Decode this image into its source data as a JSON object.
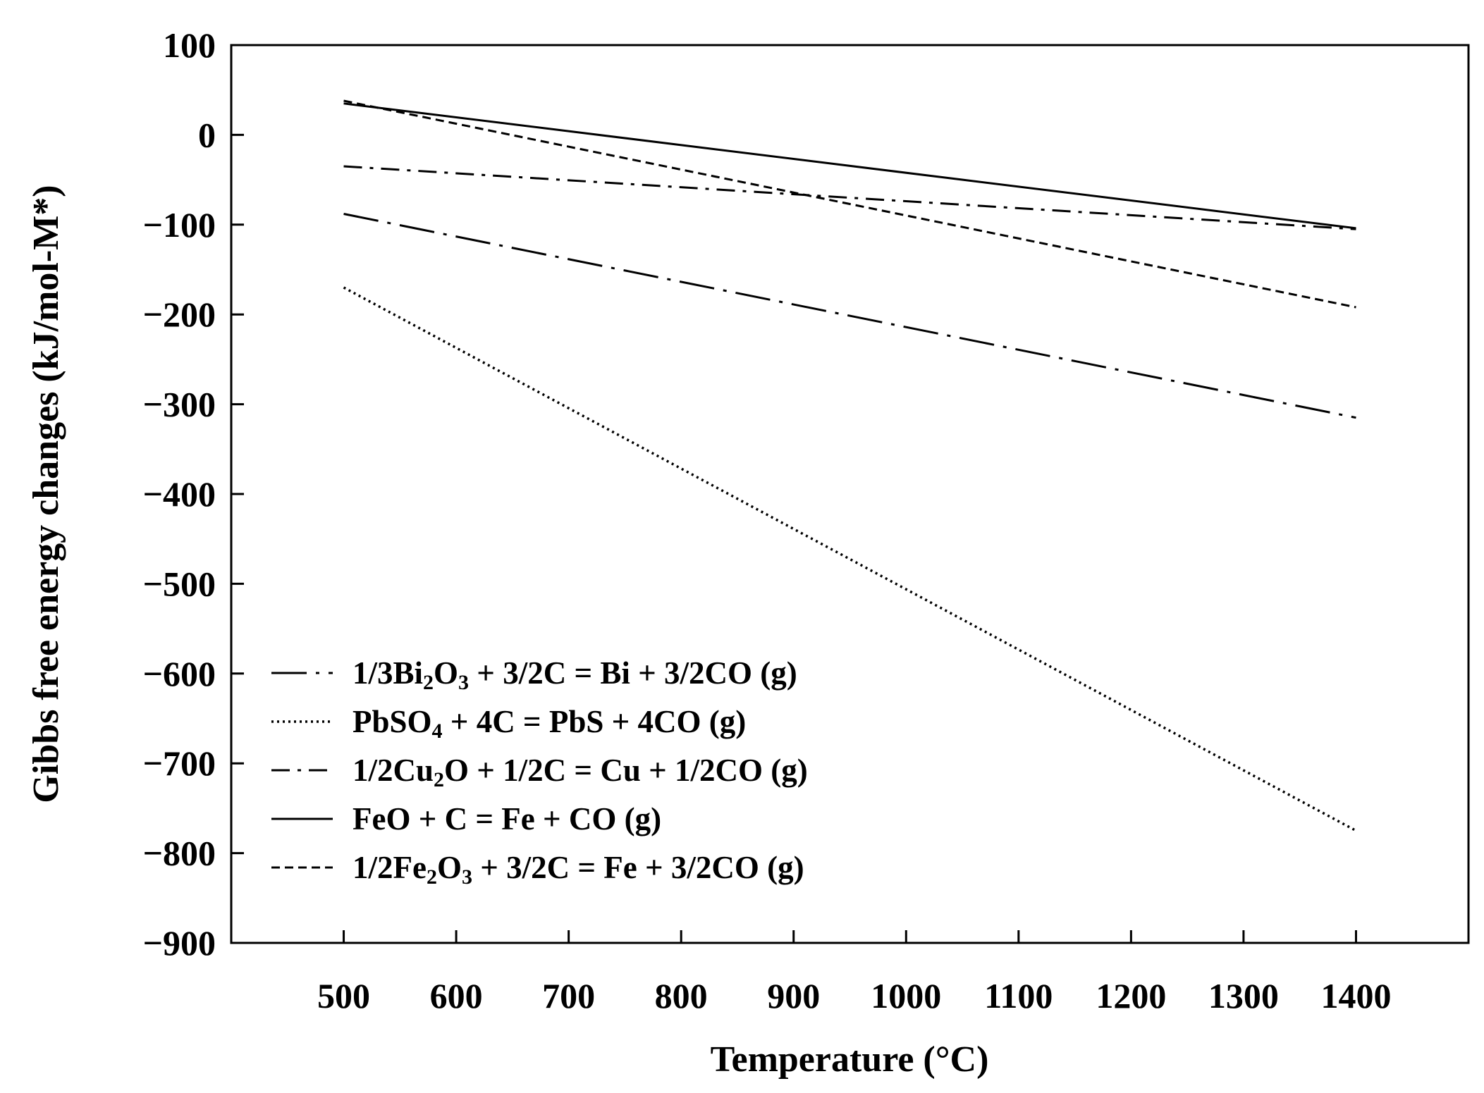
{
  "chart_data": {
    "type": "line",
    "xlabel": "Temperature (°C)",
    "ylabel": "Gibbs free energy changes (kJ/mol-M*)",
    "xlim": [
      400,
      1500
    ],
    "ylim": [
      -900,
      100
    ],
    "x_ticks": [
      500,
      600,
      700,
      800,
      900,
      1000,
      1100,
      1200,
      1300,
      1400
    ],
    "y_ticks": [
      100,
      0,
      -100,
      -200,
      -300,
      -400,
      -500,
      -600,
      -700,
      -800,
      -900
    ],
    "x_tick_labels": [
      "500",
      "600",
      "700",
      "800",
      "900",
      "1000",
      "1100",
      "1200",
      "1300",
      "1400"
    ],
    "y_tick_labels": [
      "100",
      "0",
      "−100",
      "−200",
      "−300",
      "−400",
      "−500",
      "−600",
      "−700",
      "−800",
      "−900"
    ],
    "grid": false,
    "legend_position": "bottom-left",
    "series": [
      {
        "name": "1/3Bi2O3 + 3/2C = Bi + 3/2CO (g)",
        "legend": [
          {
            "t": "1/3Bi"
          },
          {
            "t": "2",
            "sub": true
          },
          {
            "t": "O"
          },
          {
            "t": "3",
            "sub": true
          },
          {
            "t": " + 3/2C = Bi + 3/2CO (g)"
          }
        ],
        "style": "long-dash-dot",
        "x": [
          500,
          1400
        ],
        "y": [
          -88,
          -315
        ]
      },
      {
        "name": "PbSO4 + 4C = PbS + 4CO (g)",
        "legend": [
          {
            "t": "PbSO"
          },
          {
            "t": "4",
            "sub": true
          },
          {
            "t": " + 4C = PbS + 4CO (g)"
          }
        ],
        "style": "dotted",
        "x": [
          500,
          1400
        ],
        "y": [
          -170,
          -775
        ]
      },
      {
        "name": "1/2Cu2O + 1/2C = Cu + 1/2CO (g)",
        "legend": [
          {
            "t": "1/2Cu"
          },
          {
            "t": "2",
            "sub": true
          },
          {
            "t": "O + 1/2C = Cu + 1/2CO (g)"
          }
        ],
        "style": "dash-dot",
        "x": [
          500,
          1400
        ],
        "y": [
          -35,
          -105
        ]
      },
      {
        "name": "FeO + C = Fe + CO (g)",
        "legend": [
          {
            "t": "FeO + C = Fe + CO (g)"
          }
        ],
        "style": "solid",
        "x": [
          500,
          1400
        ],
        "y": [
          35,
          -104
        ]
      },
      {
        "name": "1/2Fe2O3 + 3/2C = Fe + 3/2CO (g)",
        "legend": [
          {
            "t": "1/2Fe"
          },
          {
            "t": "2",
            "sub": true
          },
          {
            "t": "O"
          },
          {
            "t": "3",
            "sub": true
          },
          {
            "t": " + 3/2C = Fe + 3/2CO (g)"
          }
        ],
        "style": "dashed",
        "x": [
          500,
          1400
        ],
        "y": [
          38,
          -192
        ]
      }
    ]
  }
}
